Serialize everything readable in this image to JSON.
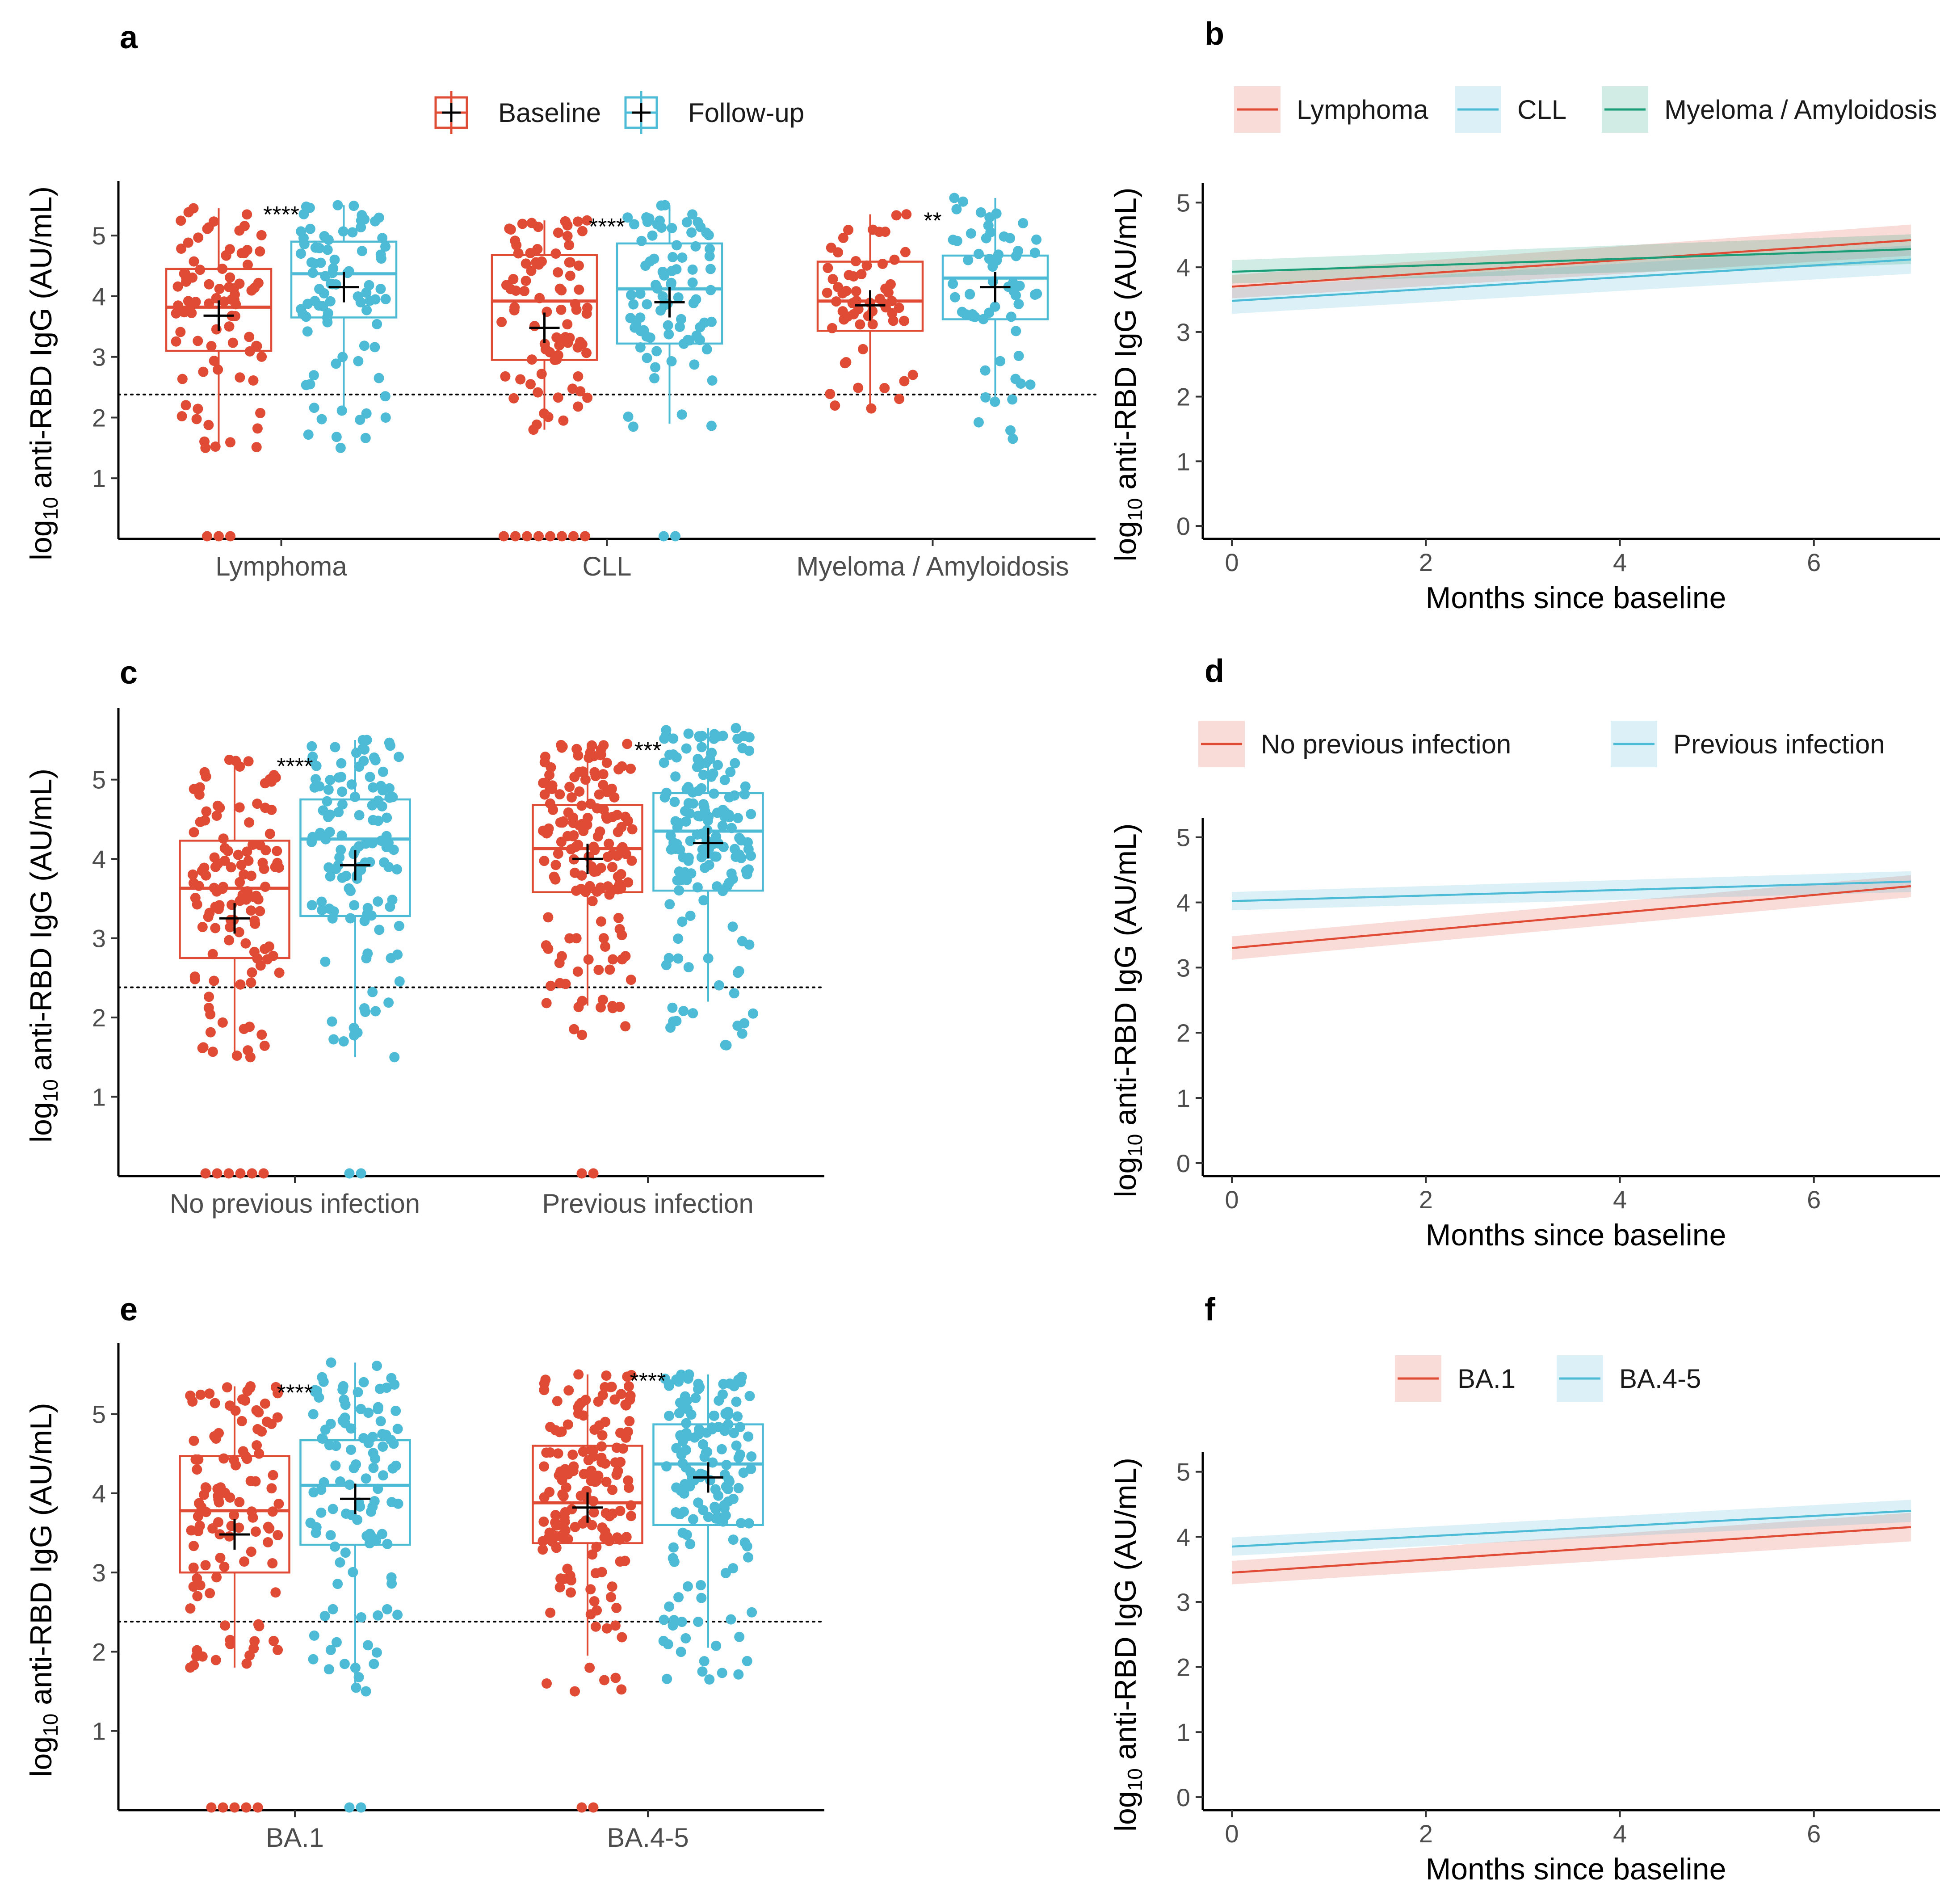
{
  "figure": {
    "colors": {
      "baseline": "#E04B35",
      "followup": "#4DBBD5",
      "lymphoma": "#E04B35",
      "cll": "#4DBBD5",
      "myeloma": "#1B9E77"
    }
  },
  "chart_data": [
    {
      "id": "a",
      "panel_label": "a",
      "type": "box",
      "ylabel_main": "log",
      "ylabel_sub": "10",
      "ylabel_rest": " anti-RBD IgG (AU/mL)",
      "ylim": [
        0,
        5.9
      ],
      "yticks": [
        1,
        2,
        3,
        4,
        5
      ],
      "threshold": 2.38,
      "legend": [
        {
          "name": "Baseline",
          "color": "#E04B35"
        },
        {
          "name": "Follow-up",
          "color": "#4DBBD5"
        }
      ],
      "groups": [
        {
          "label": "Lymphoma",
          "sig": "****",
          "baseline": {
            "q1": 3.1,
            "median": 3.82,
            "q3": 4.45,
            "wlo": 1.5,
            "whi": 5.45,
            "mean": 3.68,
            "n": 85,
            "zeros": 3,
            "pmin": 1.5,
            "pmax": 5.45
          },
          "followup": {
            "q1": 3.65,
            "median": 4.37,
            "q3": 4.9,
            "wlo": 2.1,
            "whi": 5.5,
            "mean": 4.15,
            "n": 85,
            "zeros": 0,
            "pmin": 1.5,
            "pmax": 5.5
          }
        },
        {
          "label": "CLL",
          "sig": "****",
          "baseline": {
            "q1": 2.95,
            "median": 3.92,
            "q3": 4.68,
            "wlo": 1.8,
            "whi": 5.25,
            "mean": 3.48,
            "n": 85,
            "zeros": 8,
            "pmin": 1.8,
            "pmax": 5.25
          },
          "followup": {
            "q1": 3.22,
            "median": 4.12,
            "q3": 4.87,
            "wlo": 1.9,
            "whi": 5.5,
            "mean": 3.9,
            "n": 85,
            "zeros": 2,
            "pmin": 1.85,
            "pmax": 5.5
          }
        },
        {
          "label": "Myeloma / Amyloidosis",
          "sig": "**",
          "baseline": {
            "q1": 3.43,
            "median": 3.92,
            "q3": 4.57,
            "wlo": 2.15,
            "whi": 5.35,
            "mean": 3.85,
            "n": 60,
            "zeros": 0,
            "pmin": 2.15,
            "pmax": 5.35
          },
          "followup": {
            "q1": 3.62,
            "median": 4.3,
            "q3": 4.67,
            "wlo": 2.2,
            "whi": 5.62,
            "mean": 4.15,
            "n": 60,
            "zeros": 0,
            "pmin": 1.65,
            "pmax": 5.62
          }
        }
      ]
    },
    {
      "id": "b",
      "panel_label": "b",
      "type": "line",
      "xlabel": "Months since baseline",
      "ylabel_main": "log",
      "ylabel_sub": "10",
      "ylabel_rest": " anti-RBD IgG (AU/mL)",
      "xlim": [
        -0.3,
        7.3
      ],
      "ylim": [
        -0.2,
        5.3
      ],
      "xticks": [
        0,
        2,
        4,
        6
      ],
      "yticks": [
        0,
        1,
        2,
        3,
        4,
        5
      ],
      "series": [
        {
          "name": "Lymphoma",
          "color": "#E04B35",
          "x": [
            0,
            7
          ],
          "y": [
            3.7,
            4.42
          ],
          "lo": [
            3.52,
            4.18
          ],
          "hi": [
            3.88,
            4.66
          ]
        },
        {
          "name": "CLL",
          "color": "#4DBBD5",
          "x": [
            0,
            7
          ],
          "y": [
            3.48,
            4.12
          ],
          "lo": [
            3.28,
            3.9
          ],
          "hi": [
            3.68,
            4.34
          ]
        },
        {
          "name": "Myeloma / Amyloidosis",
          "color": "#1B9E77",
          "x": [
            0,
            7
          ],
          "y": [
            3.93,
            4.28
          ],
          "lo": [
            3.75,
            4.05
          ],
          "hi": [
            4.11,
            4.51
          ]
        }
      ]
    },
    {
      "id": "c",
      "panel_label": "c",
      "type": "box",
      "ylabel_main": "log",
      "ylabel_sub": "10",
      "ylabel_rest": " anti-RBD IgG (AU/mL)",
      "ylim": [
        0,
        5.9
      ],
      "yticks": [
        1,
        2,
        3,
        4,
        5
      ],
      "threshold": 2.38,
      "groups": [
        {
          "label": "No previous infection",
          "sig": "****",
          "baseline": {
            "q1": 2.75,
            "median": 3.63,
            "q3": 4.23,
            "wlo": 1.55,
            "whi": 5.2,
            "mean": 3.25,
            "n": 120,
            "zeros": 6,
            "pmin": 1.5,
            "pmax": 5.25
          },
          "followup": {
            "q1": 3.28,
            "median": 4.25,
            "q3": 4.75,
            "wlo": 1.5,
            "whi": 5.5,
            "mean": 3.92,
            "n": 120,
            "zeros": 2,
            "pmin": 1.5,
            "pmax": 5.5
          }
        },
        {
          "label": "Previous infection",
          "sig": "***",
          "baseline": {
            "q1": 3.58,
            "median": 4.13,
            "q3": 4.68,
            "wlo": 2.15,
            "whi": 5.45,
            "mean": 4.0,
            "n": 160,
            "zeros": 2,
            "pmin": 1.78,
            "pmax": 5.45
          },
          "followup": {
            "q1": 3.6,
            "median": 4.35,
            "q3": 4.83,
            "wlo": 2.2,
            "whi": 5.65,
            "mean": 4.2,
            "n": 160,
            "zeros": 0,
            "pmin": 1.65,
            "pmax": 5.65
          }
        }
      ]
    },
    {
      "id": "d",
      "panel_label": "d",
      "type": "line",
      "xlabel": "Months since baseline",
      "ylabel_main": "log",
      "ylabel_sub": "10",
      "ylabel_rest": " anti-RBD IgG (AU/mL)",
      "xlim": [
        -0.3,
        7.3
      ],
      "ylim": [
        -0.2,
        5.3
      ],
      "xticks": [
        0,
        2,
        4,
        6
      ],
      "yticks": [
        0,
        1,
        2,
        3,
        4,
        5
      ],
      "series": [
        {
          "name": "No previous infection",
          "color": "#E04B35",
          "x": [
            0,
            7
          ],
          "y": [
            3.3,
            4.25
          ],
          "lo": [
            3.12,
            4.08
          ],
          "hi": [
            3.48,
            4.42
          ]
        },
        {
          "name": "Previous infection",
          "color": "#4DBBD5",
          "x": [
            0,
            7
          ],
          "y": [
            4.02,
            4.32
          ],
          "lo": [
            3.88,
            4.16
          ],
          "hi": [
            4.16,
            4.48
          ]
        }
      ]
    },
    {
      "id": "e",
      "panel_label": "e",
      "type": "box",
      "ylabel_main": "log",
      "ylabel_sub": "10",
      "ylabel_rest": " anti-RBD IgG (AU/mL)",
      "ylim": [
        0,
        5.9
      ],
      "yticks": [
        1,
        2,
        3,
        4,
        5
      ],
      "threshold": 2.38,
      "groups": [
        {
          "label": "BA.1",
          "sig": "****",
          "baseline": {
            "q1": 3.0,
            "median": 3.78,
            "q3": 4.47,
            "wlo": 1.8,
            "whi": 5.35,
            "mean": 3.48,
            "n": 110,
            "zeros": 5,
            "pmin": 1.8,
            "pmax": 5.35
          },
          "followup": {
            "q1": 3.35,
            "median": 4.1,
            "q3": 4.67,
            "wlo": 1.5,
            "whi": 5.65,
            "mean": 3.93,
            "n": 110,
            "zeros": 2,
            "pmin": 1.5,
            "pmax": 5.65
          }
        },
        {
          "label": "BA.4-5",
          "sig": "****",
          "baseline": {
            "q1": 3.37,
            "median": 3.88,
            "q3": 4.6,
            "wlo": 1.95,
            "whi": 5.5,
            "mean": 3.82,
            "n": 160,
            "zeros": 2,
            "pmin": 1.5,
            "pmax": 5.5
          },
          "followup": {
            "q1": 3.6,
            "median": 4.37,
            "q3": 4.87,
            "wlo": 2.05,
            "whi": 5.5,
            "mean": 4.2,
            "n": 160,
            "zeros": 0,
            "pmin": 1.65,
            "pmax": 5.5
          }
        }
      ]
    },
    {
      "id": "f",
      "panel_label": "f",
      "type": "line",
      "xlabel": "Months since baseline",
      "ylabel_main": "log",
      "ylabel_sub": "10",
      "ylabel_rest": " anti-RBD IgG (AU/mL)",
      "xlim": [
        -0.3,
        7.3
      ],
      "ylim": [
        -0.2,
        5.3
      ],
      "xticks": [
        0,
        2,
        4,
        6
      ],
      "yticks": [
        0,
        1,
        2,
        3,
        4,
        5
      ],
      "series": [
        {
          "name": "BA.1",
          "color": "#E04B35",
          "x": [
            0,
            7
          ],
          "y": [
            3.45,
            4.15
          ],
          "lo": [
            3.27,
            3.93
          ],
          "hi": [
            3.63,
            4.37
          ]
        },
        {
          "name": "BA.4-5",
          "color": "#4DBBD5",
          "x": [
            0,
            7
          ],
          "y": [
            3.85,
            4.4
          ],
          "lo": [
            3.71,
            4.23
          ],
          "hi": [
            3.99,
            4.57
          ]
        }
      ]
    }
  ]
}
